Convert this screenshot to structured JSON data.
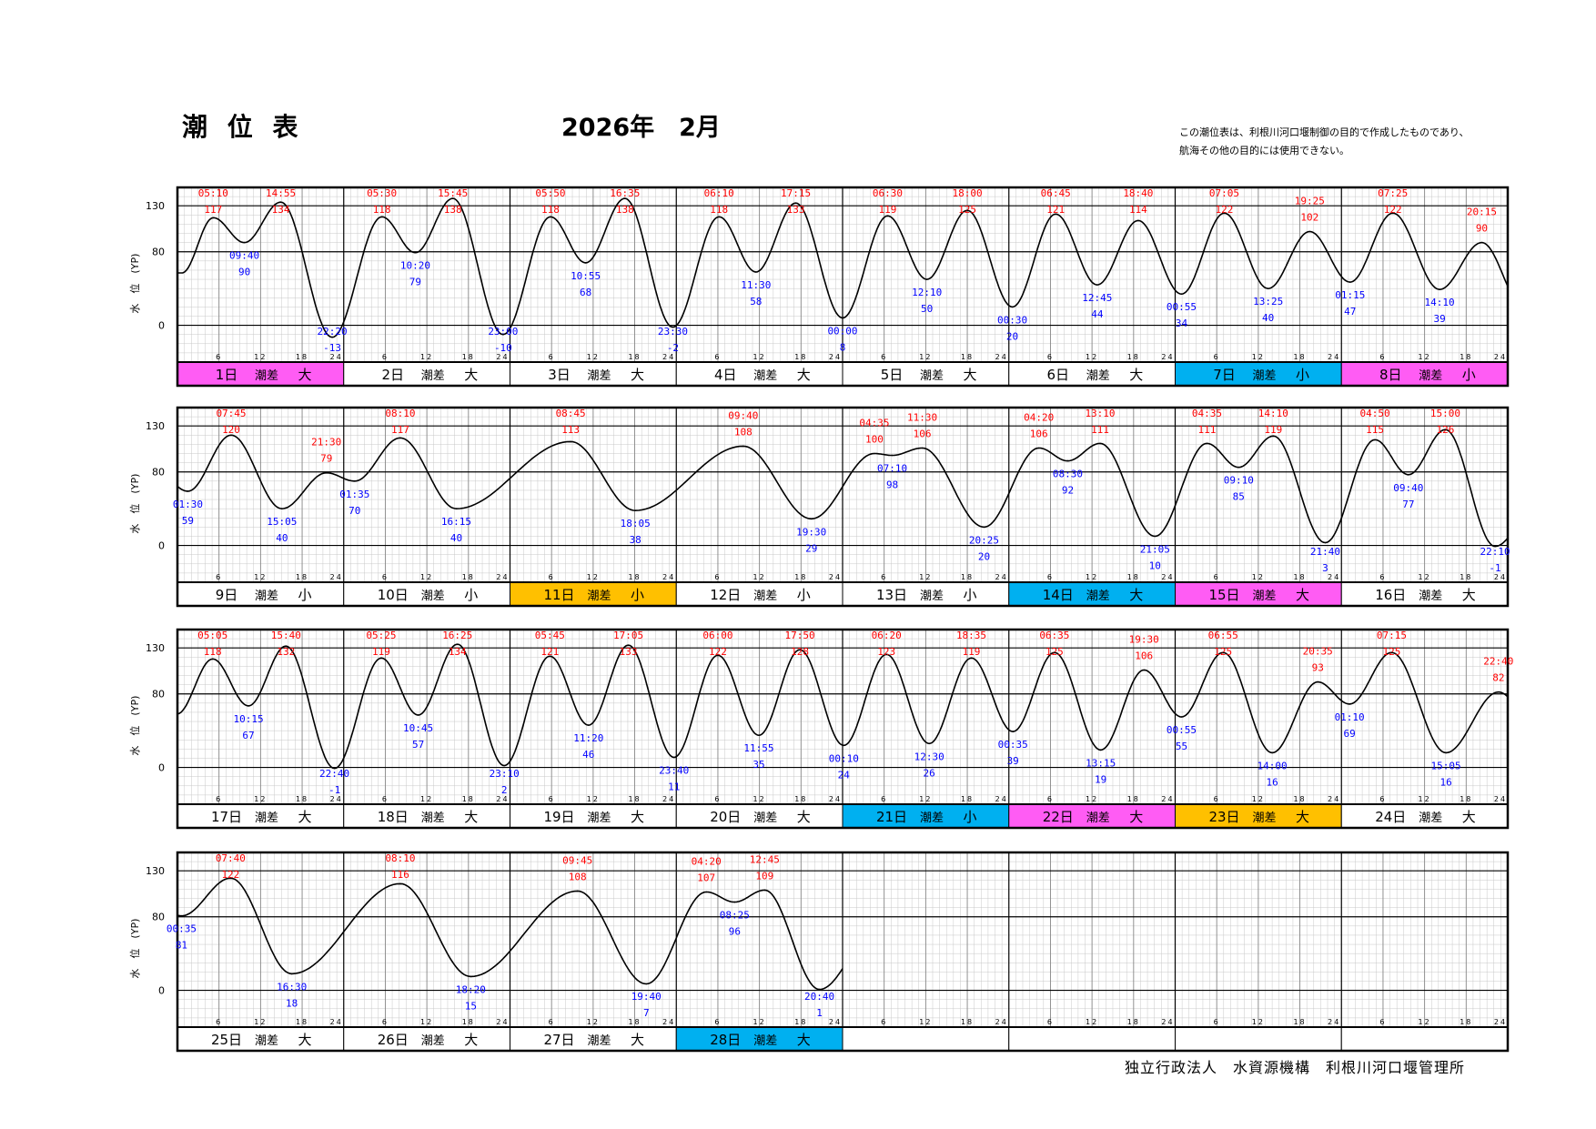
{
  "header": {
    "title": "潮 位 表",
    "year_month": "2026年　2月",
    "note_line1": "この潮位表は、利根川河口堰制御の目的で作成したものであり、",
    "note_line2": "航海その他の目的には使用できない。"
  },
  "footer": "独立行政法人　水資源機構　利根川河口堰管理所",
  "colors": {
    "high_tide_text": "#ff0000",
    "low_tide_text": "#0000ff",
    "weekend_magenta": "#ff5cf4",
    "cyan_highlight": "#00b0f0",
    "orange_highlight": "#ffc000",
    "curve": "#000000"
  },
  "chart_data": {
    "type": "line",
    "ylabel": "水　位　(YP)",
    "y_ticks": [
      0,
      80,
      130
    ],
    "ylim": [
      -40,
      150
    ],
    "x_ticks": [
      "6",
      "12",
      "18",
      "24"
    ],
    "range_label": "潮差",
    "rows": [
      {
        "days": [
          {
            "day": "1日",
            "range": "大",
            "color": "magenta",
            "highs": [
              {
                "t": "05:10",
                "v": 117
              },
              {
                "t": "14:55",
                "v": 134
              }
            ],
            "lows": [
              {
                "t": "09:40",
                "v": 90
              },
              {
                "t": "22:20",
                "v": -13
              }
            ]
          },
          {
            "day": "2日",
            "range": "大",
            "color": "",
            "highs": [
              {
                "t": "05:30",
                "v": 118
              },
              {
                "t": "15:45",
                "v": 138
              }
            ],
            "lows": [
              {
                "t": "10:20",
                "v": 79
              },
              {
                "t": "23:00",
                "v": -10
              }
            ]
          },
          {
            "day": "3日",
            "range": "大",
            "color": "",
            "highs": [
              {
                "t": "05:50",
                "v": 118
              },
              {
                "t": "16:35",
                "v": 138
              }
            ],
            "lows": [
              {
                "t": "10:55",
                "v": 68
              },
              {
                "t": "23:30",
                "v": -2
              }
            ]
          },
          {
            "day": "4日",
            "range": "大",
            "color": "",
            "highs": [
              {
                "t": "06:10",
                "v": 118
              },
              {
                "t": "17:15",
                "v": 133
              }
            ],
            "lows": [
              {
                "t": "11:30",
                "v": 58
              }
            ]
          },
          {
            "day": "5日",
            "range": "大",
            "color": "",
            "highs": [
              {
                "t": "06:30",
                "v": 119
              },
              {
                "t": "18:00",
                "v": 125
              }
            ],
            "lows": [
              {
                "t": "00:00",
                "v": 8
              },
              {
                "t": "12:10",
                "v": 50
              }
            ]
          },
          {
            "day": "6日",
            "range": "大",
            "color": "",
            "highs": [
              {
                "t": "06:45",
                "v": 121
              },
              {
                "t": "18:40",
                "v": 114
              }
            ],
            "lows": [
              {
                "t": "00:30",
                "v": 20
              },
              {
                "t": "12:45",
                "v": 44
              }
            ]
          },
          {
            "day": "7日",
            "range": "小",
            "color": "cyan",
            "highs": [
              {
                "t": "07:05",
                "v": 122
              },
              {
                "t": "19:25",
                "v": 102
              }
            ],
            "lows": [
              {
                "t": "00:55",
                "v": 34
              },
              {
                "t": "13:25",
                "v": 40
              }
            ]
          },
          {
            "day": "8日",
            "range": "小",
            "color": "magenta",
            "highs": [
              {
                "t": "07:25",
                "v": 122
              },
              {
                "t": "20:15",
                "v": 90
              }
            ],
            "lows": [
              {
                "t": "01:15",
                "v": 47
              },
              {
                "t": "14:10",
                "v": 39
              }
            ]
          }
        ]
      },
      {
        "days": [
          {
            "day": "9日",
            "range": "小",
            "color": "",
            "highs": [
              {
                "t": "07:45",
                "v": 120
              },
              {
                "t": "21:30",
                "v": 79
              }
            ],
            "lows": [
              {
                "t": "01:30",
                "v": 59
              },
              {
                "t": "15:05",
                "v": 40
              }
            ]
          },
          {
            "day": "10日",
            "range": "小",
            "color": "",
            "highs": [
              {
                "t": "08:10",
                "v": 117
              }
            ],
            "lows": [
              {
                "t": "01:35",
                "v": 70
              },
              {
                "t": "16:15",
                "v": 40
              }
            ]
          },
          {
            "day": "11日",
            "range": "小",
            "color": "orange",
            "highs": [
              {
                "t": "08:45",
                "v": 113
              }
            ],
            "lows": [
              {
                "t": "18:05",
                "v": 38
              }
            ]
          },
          {
            "day": "12日",
            "range": "小",
            "color": "",
            "highs": [
              {
                "t": "09:40",
                "v": 108
              }
            ],
            "lows": [
              {
                "t": "19:30",
                "v": 29
              }
            ]
          },
          {
            "day": "13日",
            "range": "小",
            "color": "",
            "highs": [
              {
                "t": "04:35",
                "v": 100
              },
              {
                "t": "11:30",
                "v": 106
              }
            ],
            "lows": [
              {
                "t": "07:10",
                "v": 98
              },
              {
                "t": "20:25",
                "v": 20
              }
            ]
          },
          {
            "day": "14日",
            "range": "大",
            "color": "cyan",
            "highs": [
              {
                "t": "04:20",
                "v": 106
              },
              {
                "t": "13:10",
                "v": 111
              }
            ],
            "lows": [
              {
                "t": "08:30",
                "v": 92
              },
              {
                "t": "21:05",
                "v": 10
              }
            ]
          },
          {
            "day": "15日",
            "range": "大",
            "color": "magenta",
            "highs": [
              {
                "t": "04:35",
                "v": 111
              },
              {
                "t": "14:10",
                "v": 119
              }
            ],
            "lows": [
              {
                "t": "09:10",
                "v": 85
              },
              {
                "t": "21:40",
                "v": 3
              }
            ]
          },
          {
            "day": "16日",
            "range": "大",
            "color": "",
            "highs": [
              {
                "t": "04:50",
                "v": 115
              },
              {
                "t": "15:00",
                "v": 126
              }
            ],
            "lows": [
              {
                "t": "09:40",
                "v": 77
              },
              {
                "t": "22:10",
                "v": -1
              }
            ]
          }
        ]
      },
      {
        "days": [
          {
            "day": "17日",
            "range": "大",
            "color": "",
            "highs": [
              {
                "t": "05:05",
                "v": 118
              },
              {
                "t": "15:40",
                "v": 132
              }
            ],
            "lows": [
              {
                "t": "10:15",
                "v": 67
              },
              {
                "t": "22:40",
                "v": -1
              }
            ]
          },
          {
            "day": "18日",
            "range": "大",
            "color": "",
            "highs": [
              {
                "t": "05:25",
                "v": 119
              },
              {
                "t": "16:25",
                "v": 134
              }
            ],
            "lows": [
              {
                "t": "10:45",
                "v": 57
              },
              {
                "t": "23:10",
                "v": 2
              }
            ]
          },
          {
            "day": "19日",
            "range": "大",
            "color": "",
            "highs": [
              {
                "t": "05:45",
                "v": 121
              },
              {
                "t": "17:05",
                "v": 133
              }
            ],
            "lows": [
              {
                "t": "11:20",
                "v": 46
              },
              {
                "t": "23:40",
                "v": 11
              }
            ]
          },
          {
            "day": "20日",
            "range": "大",
            "color": "",
            "highs": [
              {
                "t": "06:00",
                "v": 122
              },
              {
                "t": "17:50",
                "v": 128
              }
            ],
            "lows": [
              {
                "t": "11:55",
                "v": 35
              }
            ]
          },
          {
            "day": "21日",
            "range": "小",
            "color": "cyan",
            "highs": [
              {
                "t": "06:20",
                "v": 123
              },
              {
                "t": "18:35",
                "v": 119
              }
            ],
            "lows": [
              {
                "t": "00:10",
                "v": 24
              },
              {
                "t": "12:30",
                "v": 26
              }
            ]
          },
          {
            "day": "22日",
            "range": "大",
            "color": "magenta",
            "highs": [
              {
                "t": "06:35",
                "v": 125
              },
              {
                "t": "19:30",
                "v": 106
              }
            ],
            "lows": [
              {
                "t": "00:35",
                "v": 39
              },
              {
                "t": "13:15",
                "v": 19
              }
            ]
          },
          {
            "day": "23日",
            "range": "大",
            "color": "orange",
            "highs": [
              {
                "t": "06:55",
                "v": 125
              },
              {
                "t": "20:35",
                "v": 93
              }
            ],
            "lows": [
              {
                "t": "00:55",
                "v": 55
              },
              {
                "t": "14:00",
                "v": 16
              }
            ]
          },
          {
            "day": "24日",
            "range": "大",
            "color": "",
            "highs": [
              {
                "t": "07:15",
                "v": 125
              },
              {
                "t": "22:40",
                "v": 82
              }
            ],
            "lows": [
              {
                "t": "01:10",
                "v": 69
              },
              {
                "t": "15:05",
                "v": 16
              }
            ]
          }
        ]
      },
      {
        "days": [
          {
            "day": "25日",
            "range": "大",
            "color": "",
            "highs": [
              {
                "t": "07:40",
                "v": 122
              }
            ],
            "lows": [
              {
                "t": "00:35",
                "v": 81
              },
              {
                "t": "16:30",
                "v": 18
              }
            ]
          },
          {
            "day": "26日",
            "range": "大",
            "color": "",
            "highs": [
              {
                "t": "08:10",
                "v": 116
              }
            ],
            "lows": [
              {
                "t": "18:20",
                "v": 15
              }
            ]
          },
          {
            "day": "27日",
            "range": "大",
            "color": "",
            "highs": [
              {
                "t": "09:45",
                "v": 108
              }
            ],
            "lows": [
              {
                "t": "19:40",
                "v": 7
              }
            ]
          },
          {
            "day": "28日",
            "range": "大",
            "color": "cyan",
            "highs": [
              {
                "t": "04:20",
                "v": 107
              },
              {
                "t": "12:45",
                "v": 109
              }
            ],
            "lows": [
              {
                "t": "08:25",
                "v": 96
              },
              {
                "t": "20:40",
                "v": 1
              }
            ]
          },
          {
            "day": "",
            "range": "",
            "color": "",
            "highs": [],
            "lows": []
          },
          {
            "day": "",
            "range": "",
            "color": "",
            "highs": [],
            "lows": []
          },
          {
            "day": "",
            "range": "",
            "color": "",
            "highs": [],
            "lows": []
          },
          {
            "day": "",
            "range": "",
            "color": "",
            "highs": [],
            "lows": []
          }
        ]
      }
    ]
  }
}
